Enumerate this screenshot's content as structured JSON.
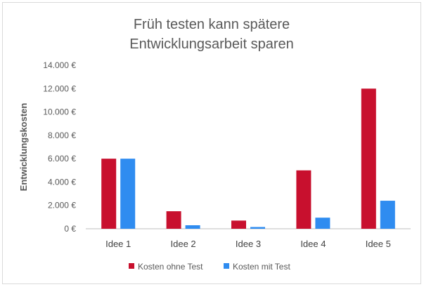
{
  "chart_data": {
    "type": "bar",
    "title_lines": [
      "Früh testen kann spätere",
      "Entwicklungsarbeit sparen"
    ],
    "xlabel": "",
    "ylabel": "Entwicklungskosten",
    "ylim": [
      0,
      14000
    ],
    "yticks": [
      0,
      2000,
      4000,
      6000,
      8000,
      10000,
      12000,
      14000
    ],
    "ytick_labels": [
      "0 €",
      "2.000 €",
      "4.000 €",
      "6.000 €",
      "8.000 €",
      "10.000 €",
      "12.000 €",
      "14.000 €"
    ],
    "categories": [
      "Idee 1",
      "Idee 2",
      "Idee 3",
      "Idee 4",
      "Idee 5"
    ],
    "series": [
      {
        "name": "Kosten ohne Test",
        "color": "#c8102e",
        "values": [
          6000,
          1500,
          700,
          5000,
          12000
        ]
      },
      {
        "name": "Kosten mit Test",
        "color": "#2f8cf0",
        "values": [
          6000,
          300,
          150,
          950,
          2400
        ]
      }
    ],
    "grid": false,
    "legend_position": "bottom",
    "axis_color": "#bfbfbf",
    "text_color": "#595959",
    "title_color": "#595959"
  }
}
